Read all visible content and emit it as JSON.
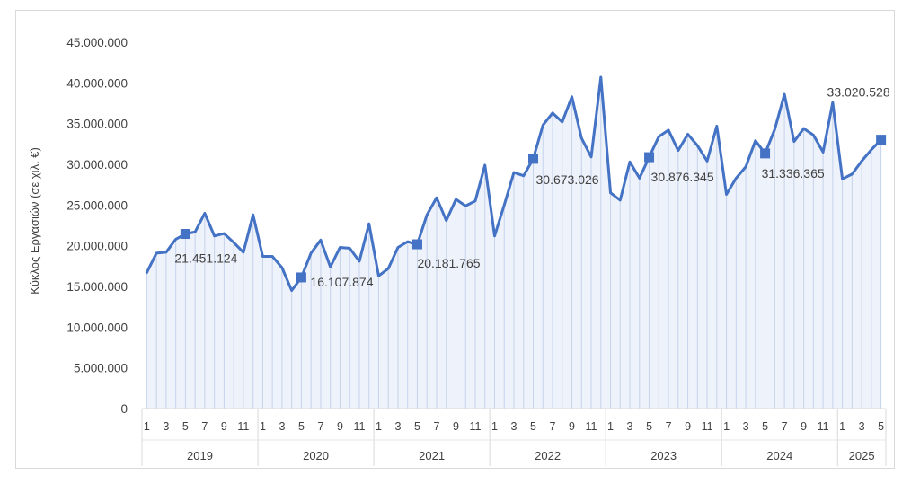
{
  "chart_data": {
    "type": "area",
    "title": "",
    "ylabel": "Κύκλος Εργασιών (σε χιλ. €)",
    "xlabel": "",
    "ylim": [
      0,
      45000000
    ],
    "y_ticks": [
      "0",
      "5.000.000",
      "10.000.000",
      "15.000.000",
      "20.000.000",
      "25.000.000",
      "30.000.000",
      "35.000.000",
      "40.000.000",
      "45.000.000"
    ],
    "x_month_ticks": [
      "1",
      "3",
      "5",
      "7",
      "9",
      "11"
    ],
    "years": [
      {
        "label": "2019",
        "months": 12
      },
      {
        "label": "2020",
        "months": 12
      },
      {
        "label": "2021",
        "months": 12
      },
      {
        "label": "2022",
        "months": 12
      },
      {
        "label": "2023",
        "months": 12
      },
      {
        "label": "2024",
        "months": 12
      },
      {
        "label": "2025",
        "months": 5
      }
    ],
    "series": [
      {
        "color": "#4472c4",
        "values": [
          16700000,
          19100000,
          19200000,
          20800000,
          21451124,
          21700000,
          24000000,
          21200000,
          21500000,
          20400000,
          19200000,
          23800000,
          18700000,
          18700000,
          17300000,
          14500000,
          16107874,
          19100000,
          20700000,
          17400000,
          19800000,
          19700000,
          18100000,
          22700000,
          16300000,
          17200000,
          19800000,
          20500000,
          20181765,
          23800000,
          25900000,
          23100000,
          25700000,
          24900000,
          25500000,
          29900000,
          21200000,
          25000000,
          29000000,
          28600000,
          30673026,
          34800000,
          36300000,
          35200000,
          38300000,
          33200000,
          30900000,
          40700000,
          26500000,
          25600000,
          30300000,
          28300000,
          30876345,
          33400000,
          34200000,
          31700000,
          33700000,
          32300000,
          30400000,
          34700000,
          26300000,
          28300000,
          29700000,
          32900000,
          31336365,
          34300000,
          38600000,
          32800000,
          34400000,
          33600000,
          31500000,
          37600000,
          28200000,
          28800000,
          30400000,
          31800000,
          33020528
        ]
      }
    ],
    "markers": [
      {
        "index": 4,
        "label": "21.451.124"
      },
      {
        "index": 16,
        "label": "16.107.874"
      },
      {
        "index": 28,
        "label": "20.181.765"
      },
      {
        "index": 40,
        "label": "30.673.026"
      },
      {
        "index": 52,
        "label": "30.876.345"
      },
      {
        "index": 64,
        "label": "31.336.365"
      },
      {
        "index": 76,
        "label": "33.020.528"
      }
    ],
    "grid": false,
    "legend": "none"
  }
}
